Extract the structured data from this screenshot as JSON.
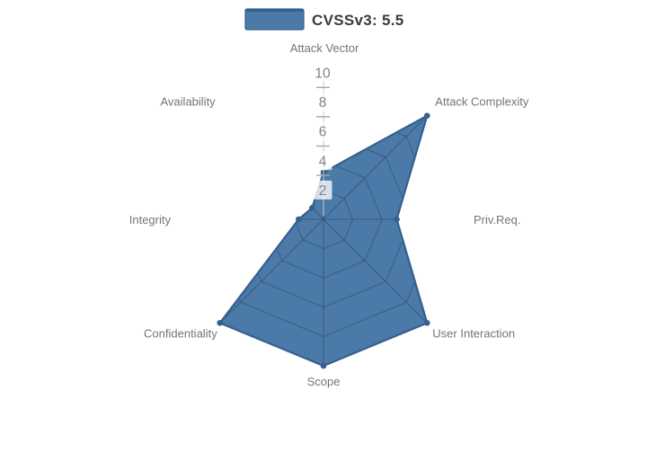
{
  "legend": {
    "label": "CVSSv3: 5.5",
    "swatch_color": "#4b79a8",
    "swatch_border": "#35608e"
  },
  "chart_data": {
    "type": "radar",
    "title": "CVSSv3: 5.5",
    "categories": [
      "Attack Vector",
      "Attack Complexity",
      "Priv.Req.",
      "User Interaction",
      "Scope",
      "Confidentiality",
      "Integrity",
      "Availability"
    ],
    "series": [
      {
        "name": "CVSSv3: 5.5",
        "values": [
          3.2,
          10,
          5,
          10,
          10,
          10,
          1.7,
          1.1
        ]
      }
    ],
    "radial_axis": {
      "tick_labels": [
        "2",
        "4",
        "6",
        "8",
        "10"
      ],
      "tick_values": [
        2,
        4,
        6,
        8,
        10
      ],
      "range": [
        0,
        10
      ]
    },
    "legend_position": "top-center",
    "grid": "spider-web (8 spokes, rings every 2 units), visible only over filled polygon",
    "colors": {
      "fill": "#4b79a8",
      "line": "#35608e",
      "grid_line": "rgba(35,55,80,0.42)",
      "category_label": "#757575",
      "tick_text": "#828282",
      "tick_box": "rgba(255,255,255,0.78)",
      "axis_line": "#c8c8c8",
      "background": "#ffffff"
    }
  }
}
